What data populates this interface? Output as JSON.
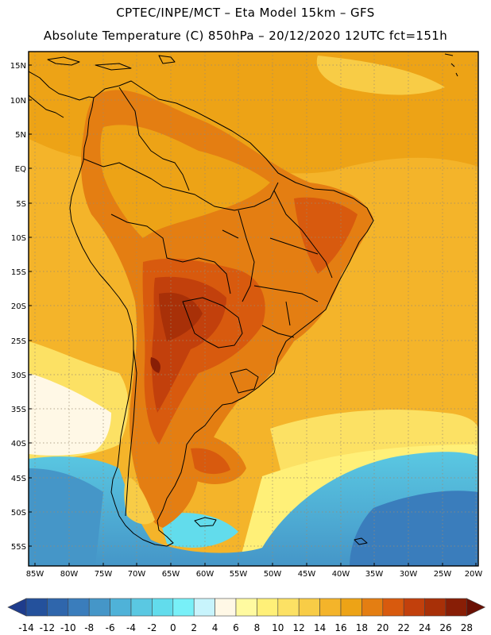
{
  "header": {
    "line1": "CPTEC/INPE/MCT  –   Eta Model 15km  –  GFS",
    "line2": "Absolute Temperature (C) 850hPa  – 20/12/2020 12UTC fct=151h"
  },
  "axes": {
    "lat_labels": [
      "15N",
      "10N",
      "5N",
      "EQ",
      "5S",
      "10S",
      "15S",
      "20S",
      "25S",
      "30S",
      "35S",
      "40S",
      "45S",
      "50S",
      "55S"
    ],
    "lon_labels": [
      "85W",
      "80W",
      "75W",
      "70W",
      "65W",
      "60W",
      "55W",
      "50W",
      "45W",
      "40W",
      "35W",
      "30W",
      "25W",
      "20W"
    ]
  },
  "colorbar": {
    "ticks": [
      "-14",
      "-12",
      "-10",
      "-8",
      "-6",
      "-4",
      "-2",
      "0",
      "2",
      "4",
      "6",
      "8",
      "10",
      "12",
      "14",
      "16",
      "18",
      "20",
      "22",
      "24",
      "26",
      "28"
    ],
    "colors": [
      "#1e3c8c",
      "#24519c",
      "#2f66ac",
      "#3a7dbc",
      "#4596c8",
      "#4fb2d8",
      "#5ac8e2",
      "#62dcec",
      "#78f0f8",
      "#c8f4fc",
      "#fff8e6",
      "#fffaa0",
      "#fff078",
      "#fce164",
      "#f8cc46",
      "#f4b42a",
      "#eda316",
      "#e47e12",
      "#d85a0e",
      "#c2400c",
      "#a83008",
      "#881e06",
      "#6a1004"
    ]
  }
}
